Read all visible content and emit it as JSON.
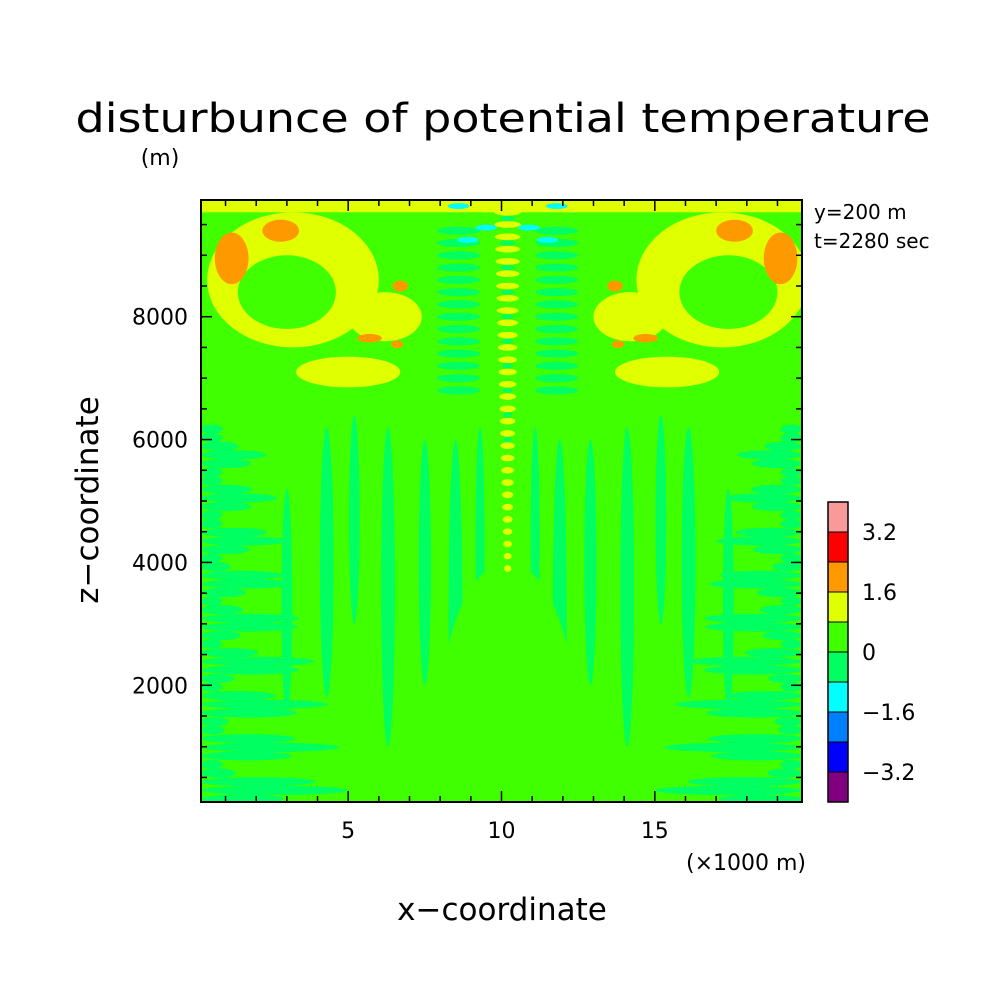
{
  "chart_data": {
    "type": "heatmap",
    "title": "disturbunce of potential temperature",
    "y_unit": "(m)",
    "x_unit": "(×1000 m)",
    "xlabel": "x−coordinate",
    "ylabel": "z−coordinate",
    "annotations": [
      "y=200 m",
      "t=2280 sec"
    ],
    "xlim": [
      0.2,
      19.8
    ],
    "ylim": [
      100,
      9900
    ],
    "x_ticks": [
      {
        "value": 5,
        "label": "5"
      },
      {
        "value": 10,
        "label": "10"
      },
      {
        "value": 15,
        "label": "15"
      }
    ],
    "y_ticks": [
      {
        "value": 2000,
        "label": "2000"
      },
      {
        "value": 4000,
        "label": "4000"
      },
      {
        "value": 6000,
        "label": "6000"
      },
      {
        "value": 8000,
        "label": "8000"
      }
    ],
    "legend": {
      "placement": "right",
      "levels": [
        {
          "color": "#800080",
          "range": [
            -4.0,
            -3.2
          ]
        },
        {
          "color": "#0000ff",
          "range": [
            -3.2,
            -2.4
          ]
        },
        {
          "color": "#0080ff",
          "range": [
            -2.4,
            -1.6
          ]
        },
        {
          "color": "#00ffff",
          "range": [
            -1.6,
            -0.8
          ]
        },
        {
          "color": "#00ff60",
          "range": [
            -0.8,
            0.0
          ]
        },
        {
          "color": "#40ff00",
          "range": [
            0.0,
            0.8
          ]
        },
        {
          "color": "#e0ff00",
          "range": [
            0.8,
            1.6
          ]
        },
        {
          "color": "#ff9900",
          "range": [
            1.6,
            2.4
          ]
        },
        {
          "color": "#ff0000",
          "range": [
            2.4,
            3.2
          ]
        },
        {
          "color": "#f89a9a",
          "range": [
            3.2,
            4.0
          ]
        }
      ],
      "labels": [
        {
          "value": -3.2,
          "label": "−3.2"
        },
        {
          "value": -1.6,
          "label": "−1.6"
        },
        {
          "value": 0,
          "label": "0"
        },
        {
          "value": 1.6,
          "label": "1.6"
        },
        {
          "value": 3.2,
          "label": "3.2"
        }
      ]
    },
    "background_level": 0.4,
    "field_regions": [
      {
        "name": "lower-left striations",
        "x": [
          0.2,
          4.5
        ],
        "z": [
          100,
          6300
        ],
        "value": -0.3
      },
      {
        "name": "lower-right striations",
        "x": [
          15.5,
          19.8
        ],
        "z": [
          100,
          6300
        ],
        "value": -0.3
      },
      {
        "name": "mid vertical bands",
        "x": [
          3.5,
          16.5
        ],
        "z": [
          500,
          6800
        ],
        "value": -0.3
      },
      {
        "name": "central pulse column",
        "x": [
          9.6,
          10.8
        ],
        "z": [
          3800,
          9800
        ],
        "value": 1.0
      },
      {
        "name": "upper-left warm lobe",
        "x": [
          0.6,
          7.0
        ],
        "z": [
          6800,
          9700
        ],
        "value": 1.2
      },
      {
        "name": "upper-right warm lobe",
        "x": [
          13.0,
          19.4
        ],
        "z": [
          6800,
          9700
        ],
        "value": 1.2
      },
      {
        "name": "top-left orange patch",
        "x": [
          0.8,
          2.0
        ],
        "z": [
          8500,
          9300
        ],
        "value": 2.0
      },
      {
        "name": "top-right orange patch",
        "x": [
          18.0,
          19.3
        ],
        "z": [
          8500,
          9300
        ],
        "value": 2.0
      },
      {
        "name": "top cyan streaks",
        "x": [
          8.0,
          12.0
        ],
        "z": [
          9200,
          9800
        ],
        "value": -1.0
      }
    ]
  }
}
